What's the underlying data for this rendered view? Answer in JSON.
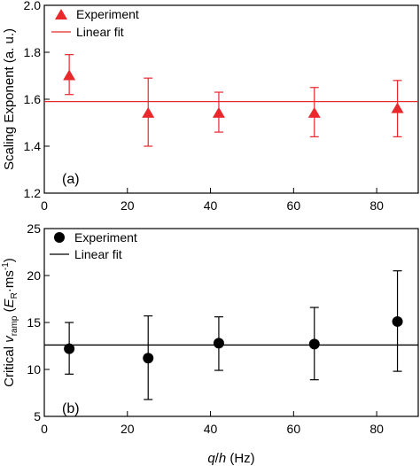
{
  "chart_data": [
    {
      "type": "scatter",
      "panel_label": "(a)",
      "ylabel": "Scaling Exponent  (a. u.)",
      "xlim": [
        0,
        90
      ],
      "ylim": [
        1.2,
        2.0
      ],
      "xticks": [
        0,
        20,
        40,
        60,
        80
      ],
      "yticks": [
        1.2,
        1.4,
        1.6,
        1.8,
        2.0
      ],
      "ytick_labels": [
        "1.2",
        "1.4",
        "1.6",
        "1.8",
        "2.0"
      ],
      "color": "#e8282b",
      "marker": "triangle",
      "legend": {
        "placement": "top-left",
        "entries": [
          "Experiment",
          "Linear fit"
        ]
      },
      "series": [
        {
          "name": "Experiment",
          "x": [
            6,
            25,
            42,
            65,
            85
          ],
          "y": [
            1.7,
            1.54,
            1.54,
            1.54,
            1.56
          ],
          "yerr_low": [
            1.62,
            1.4,
            1.46,
            1.44,
            1.44
          ],
          "yerr_high": [
            1.79,
            1.69,
            1.63,
            1.65,
            1.68
          ]
        }
      ],
      "fit": {
        "name": "Linear fit",
        "y": 1.59
      }
    },
    {
      "type": "scatter",
      "panel_label": "(b)",
      "ylabel_parts": {
        "pre": "Critical ",
        "v": "v",
        "sub": "ramp",
        "mid": " (",
        "E": "E",
        "Esub": "R",
        "post": "·ms",
        "sup": "-1",
        "close": ")"
      },
      "xlabel_parts": {
        "q": "q",
        "slash": "/",
        "h": "h",
        "unit": " (Hz)"
      },
      "xlim": [
        0,
        90
      ],
      "ylim": [
        5,
        25
      ],
      "xticks": [
        0,
        20,
        40,
        60,
        80
      ],
      "yticks": [
        5,
        10,
        15,
        20,
        25
      ],
      "ytick_labels": [
        "5",
        "10",
        "15",
        "20",
        "25"
      ],
      "color": "#000000",
      "marker": "circle",
      "legend": {
        "placement": "top-left",
        "entries": [
          "Experiment",
          "Linear fit"
        ]
      },
      "series": [
        {
          "name": "Experiment",
          "x": [
            6,
            25,
            42,
            65,
            85
          ],
          "y": [
            12.2,
            11.2,
            12.8,
            12.7,
            15.1
          ],
          "yerr_low": [
            9.5,
            6.8,
            9.9,
            8.9,
            9.8
          ],
          "yerr_high": [
            15.0,
            15.7,
            15.6,
            16.6,
            20.5
          ]
        }
      ],
      "fit": {
        "name": "Linear fit",
        "y": 12.6
      }
    }
  ]
}
